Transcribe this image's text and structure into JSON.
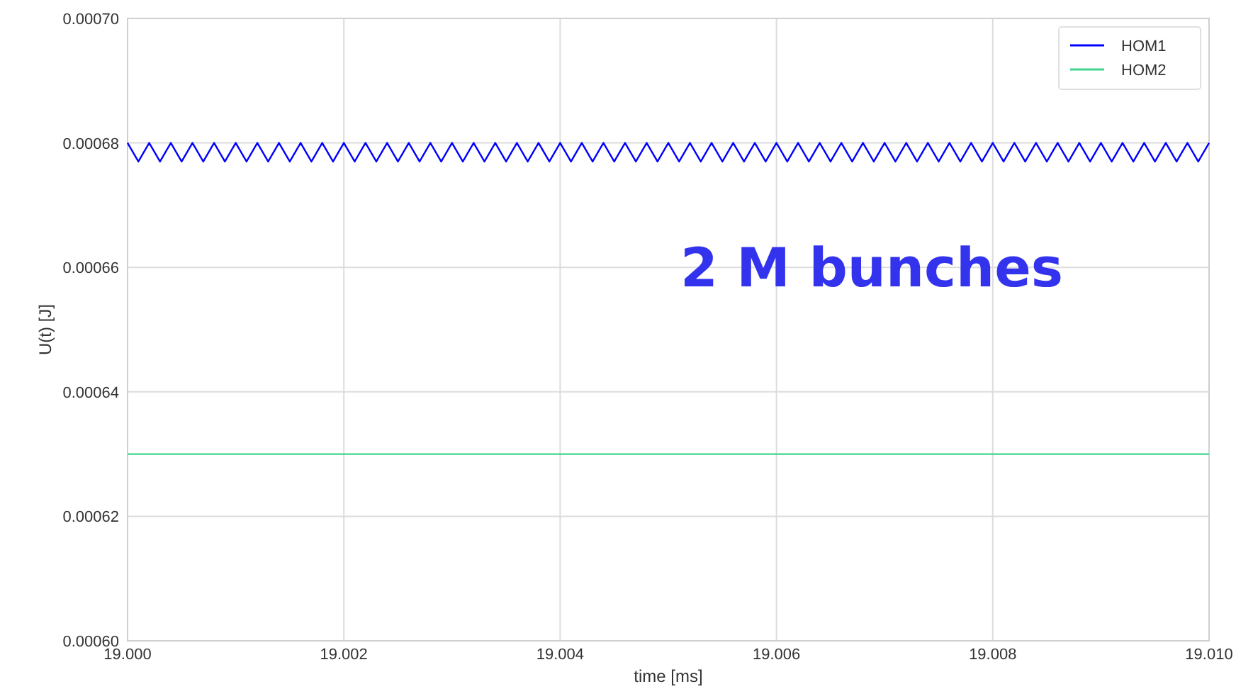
{
  "chart_data": {
    "type": "line",
    "xlabel": "time [ms]",
    "ylabel": "U(t) [J]",
    "xlim": [
      19.0,
      19.01
    ],
    "xticks": [
      {
        "value": 19.0,
        "label": "19.000"
      },
      {
        "value": 19.002,
        "label": "19.002"
      },
      {
        "value": 19.004,
        "label": "19.004"
      },
      {
        "value": 19.006,
        "label": "19.006"
      },
      {
        "value": 19.008,
        "label": "19.008"
      },
      {
        "value": 19.01,
        "label": "19.010"
      }
    ],
    "ylim": [
      0.0006,
      0.0007
    ],
    "yticks": [
      {
        "value": 0.0006,
        "label": "0.00060"
      },
      {
        "value": 0.00062,
        "label": "0.00062"
      },
      {
        "value": 0.00064,
        "label": "0.00064"
      },
      {
        "value": 0.00066,
        "label": "0.00066"
      },
      {
        "value": 0.00068,
        "label": "0.00068"
      },
      {
        "value": 0.0007,
        "label": "0.00070"
      }
    ],
    "grid": true,
    "legend": "top right",
    "annotations": [
      "2 M bunches"
    ],
    "series": [
      {
        "name": "HOM1",
        "color": "#0000ff",
        "x": [
          19.0,
          19.0001,
          19.0002,
          19.0003,
          19.0004,
          19.0005,
          19.0006,
          19.0007,
          19.0008,
          19.0009,
          19.001,
          19.0011,
          19.0012,
          19.0013,
          19.0014,
          19.0015,
          19.0016,
          19.0017,
          19.0018,
          19.0019,
          19.002,
          19.0021,
          19.0022,
          19.0023,
          19.0024,
          19.0025,
          19.0026,
          19.0027,
          19.0028,
          19.0029,
          19.003,
          19.0031,
          19.0032,
          19.0033,
          19.0034,
          19.0035,
          19.0036,
          19.0037,
          19.0038,
          19.0039,
          19.004,
          19.0041,
          19.0042,
          19.0043,
          19.0044,
          19.0045,
          19.0046,
          19.0047,
          19.0048,
          19.0049,
          19.005,
          19.0051,
          19.0052,
          19.0053,
          19.0054,
          19.0055,
          19.0056,
          19.0057,
          19.0058,
          19.0059,
          19.006,
          19.0061,
          19.0062,
          19.0063,
          19.0064,
          19.0065,
          19.0066,
          19.0067,
          19.0068,
          19.0069,
          19.007,
          19.0071,
          19.0072,
          19.0073,
          19.0074,
          19.0075,
          19.0076,
          19.0077,
          19.0078,
          19.0079,
          19.008,
          19.0081,
          19.0082,
          19.0083,
          19.0084,
          19.0085,
          19.0086,
          19.0087,
          19.0088,
          19.0089,
          19.009,
          19.0091,
          19.0092,
          19.0093,
          19.0094,
          19.0095,
          19.0096,
          19.0097,
          19.0098,
          19.0099,
          19.01
        ],
        "values": [
          0.00068,
          0.000677,
          0.00068,
          0.000677,
          0.00068,
          0.000677,
          0.00068,
          0.000677,
          0.00068,
          0.000677,
          0.00068,
          0.000677,
          0.00068,
          0.000677,
          0.00068,
          0.000677,
          0.00068,
          0.000677,
          0.00068,
          0.000677,
          0.00068,
          0.000677,
          0.00068,
          0.000677,
          0.00068,
          0.000677,
          0.00068,
          0.000677,
          0.00068,
          0.000677,
          0.00068,
          0.000677,
          0.00068,
          0.000677,
          0.00068,
          0.000677,
          0.00068,
          0.000677,
          0.00068,
          0.000677,
          0.00068,
          0.000677,
          0.00068,
          0.000677,
          0.00068,
          0.000677,
          0.00068,
          0.000677,
          0.00068,
          0.000677,
          0.00068,
          0.000677,
          0.00068,
          0.000677,
          0.00068,
          0.000677,
          0.00068,
          0.000677,
          0.00068,
          0.000677,
          0.00068,
          0.000677,
          0.00068,
          0.000677,
          0.00068,
          0.000677,
          0.00068,
          0.000677,
          0.00068,
          0.000677,
          0.00068,
          0.000677,
          0.00068,
          0.000677,
          0.00068,
          0.000677,
          0.00068,
          0.000677,
          0.00068,
          0.000677,
          0.00068,
          0.000677,
          0.00068,
          0.000677,
          0.00068,
          0.000677,
          0.00068,
          0.000677,
          0.00068,
          0.000677,
          0.00068,
          0.000677,
          0.00068,
          0.000677,
          0.00068,
          0.000677,
          0.00068,
          0.000677,
          0.00068,
          0.000677,
          0.00068
        ]
      },
      {
        "name": "HOM2",
        "color": "#3dd68c",
        "x": [
          19.0,
          19.01
        ],
        "values": [
          0.00063,
          0.00063
        ]
      }
    ]
  }
}
